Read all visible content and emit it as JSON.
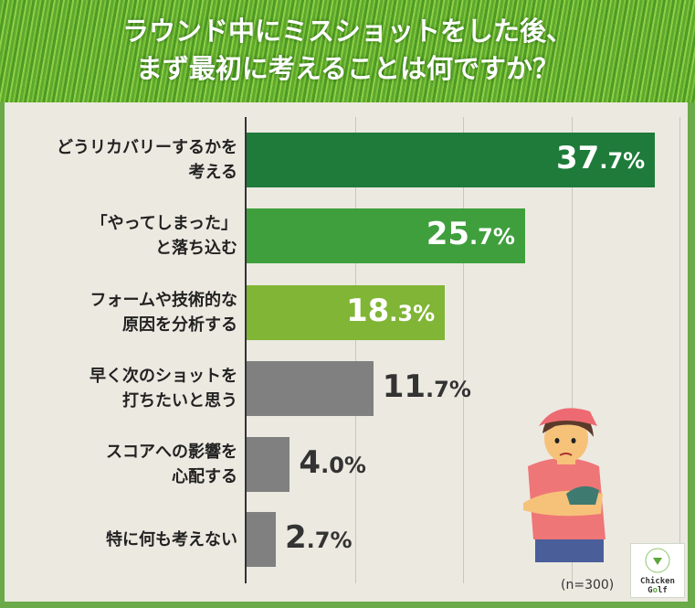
{
  "chart_data": {
    "type": "bar",
    "orientation": "horizontal",
    "title": "ラウンド中にミスショットをした後、\nまず最初に考えることは何ですか？",
    "categories": [
      "どうリカバリーするかを\n考える",
      "「やってしまった」\nと落ち込む",
      "フォームや技術的な\n原因を分析する",
      "早く次のショットを\n打ちたいと思う",
      "スコアへの影響を\n心配する",
      "特に何も考えない"
    ],
    "values": [
      37.7,
      25.7,
      18.3,
      11.7,
      4.0,
      2.7
    ],
    "labels": [
      "37.7%",
      "25.7%",
      "18.3%",
      "11.7%",
      "4.0%",
      "2.7%"
    ],
    "colors": [
      "#1e7b3a",
      "#3f9f3d",
      "#80b535",
      "#808080",
      "#808080",
      "#808080"
    ],
    "xlim": [
      0,
      40
    ],
    "grid": true,
    "note": "(n=300)"
  },
  "logo": "Chicken Golf"
}
